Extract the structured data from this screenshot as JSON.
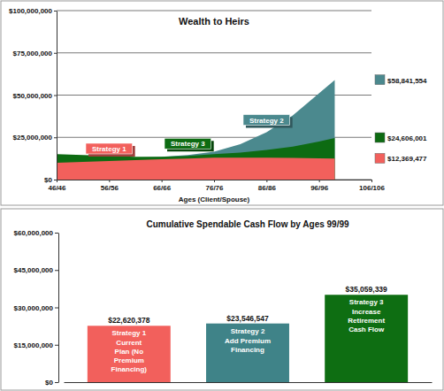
{
  "chart_data": [
    {
      "type": "area",
      "title": "Wealth to Heirs",
      "x_label": "Ages (Client/Spouse)",
      "x": [
        46,
        51,
        56,
        61,
        66,
        71,
        76,
        81,
        86,
        91,
        96,
        99
      ],
      "xlim": [
        46,
        106
      ],
      "xticks": [
        {
          "value": 46,
          "label": "46/46"
        },
        {
          "value": 56,
          "label": "56/56"
        },
        {
          "value": 66,
          "label": "66/66"
        },
        {
          "value": 76,
          "label": "76/76"
        },
        {
          "value": 86,
          "label": "86/86"
        },
        {
          "value": 96,
          "label": "96/96"
        },
        {
          "value": 106,
          "label": "106/106"
        }
      ],
      "ylim": [
        0,
        100000000
      ],
      "yticks": [
        {
          "value": 0,
          "label": "$0"
        },
        {
          "value": 25000000,
          "label": "$25,000,000"
        },
        {
          "value": 50000000,
          "label": "$50,000,000"
        },
        {
          "value": 75000000,
          "label": "$75,000,000"
        },
        {
          "value": 100000000,
          "label": "$100,000,000"
        }
      ],
      "grid": true,
      "stacked": false,
      "data_labels": true,
      "series": [
        {
          "name": "Strategy 2",
          "color": "#4b898e",
          "values": [
            14000000,
            13500000,
            13000000,
            13000000,
            13500000,
            14500000,
            16500000,
            21000000,
            28000000,
            38000000,
            51000000,
            58841554
          ],
          "value_labels": [
            null,
            null,
            null,
            null,
            null,
            null,
            null,
            null,
            null,
            null,
            null,
            "$58,841,554"
          ]
        },
        {
          "name": "Strategy 3",
          "color": "#0d6b12",
          "values": [
            15000000,
            14500000,
            14000000,
            13500000,
            13500000,
            14000000,
            15000000,
            16000000,
            17500000,
            19500000,
            22500000,
            24606001
          ],
          "value_labels": [
            null,
            null,
            null,
            null,
            null,
            null,
            null,
            null,
            null,
            null,
            null,
            "$24,606,001"
          ]
        },
        {
          "name": "Strategy 1",
          "color": "#f2605c",
          "values": [
            10000000,
            10500000,
            11000000,
            11500000,
            12000000,
            12500000,
            13000000,
            13000000,
            13000000,
            12800000,
            12600000,
            12369477
          ],
          "value_labels": [
            null,
            null,
            null,
            null,
            null,
            null,
            null,
            null,
            null,
            null,
            null,
            "$12,369,477"
          ]
        }
      ]
    },
    {
      "type": "bar",
      "title": "Cumulative Spendable Cash Flow by Ages 99/99",
      "categories": [
        "Strategy 1",
        "Strategy 2",
        "Strategy 3"
      ],
      "descriptions": [
        "Current Plan (No Premium Financing)",
        "Add Premium Financing",
        "Increase Retirement Cash Flow"
      ],
      "values": [
        22620378,
        23546547,
        35059339
      ],
      "value_labels": [
        "$22,620,378",
        "$23,546,547",
        "$35,059,339"
      ],
      "colors": [
        "#f2605c",
        "#3f8388",
        "#0e6e12"
      ],
      "ylim": [
        0,
        60000000
      ],
      "yticks": [
        {
          "value": 0,
          "label": "$0"
        },
        {
          "value": 15000000,
          "label": "$15,000,000"
        },
        {
          "value": 30000000,
          "label": "$30,000,000"
        },
        {
          "value": 45000000,
          "label": "$45,000,000"
        },
        {
          "value": 60000000,
          "label": "$60,000,000"
        }
      ],
      "grid": false,
      "data_labels": true
    }
  ]
}
